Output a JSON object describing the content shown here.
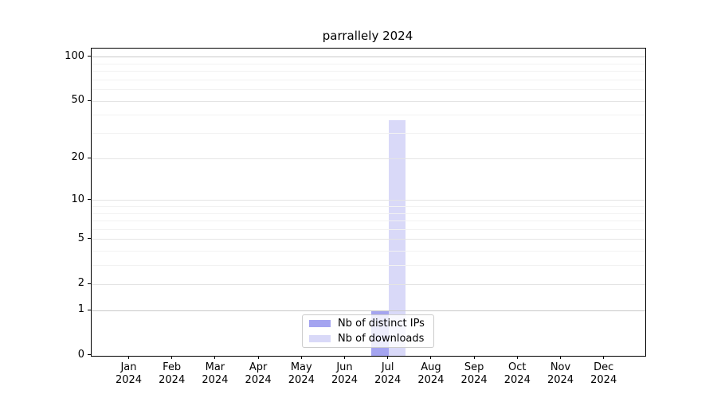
{
  "chart_data": {
    "type": "bar",
    "title": "parrallely 2024",
    "categories": [
      {
        "month": "Jan",
        "year": "2024"
      },
      {
        "month": "Feb",
        "year": "2024"
      },
      {
        "month": "Mar",
        "year": "2024"
      },
      {
        "month": "Apr",
        "year": "2024"
      },
      {
        "month": "May",
        "year": "2024"
      },
      {
        "month": "Jun",
        "year": "2024"
      },
      {
        "month": "Jul",
        "year": "2024"
      },
      {
        "month": "Aug",
        "year": "2024"
      },
      {
        "month": "Sep",
        "year": "2024"
      },
      {
        "month": "Oct",
        "year": "2024"
      },
      {
        "month": "Nov",
        "year": "2024"
      },
      {
        "month": "Dec",
        "year": "2024"
      }
    ],
    "series": [
      {
        "name": "Nb of distinct IPs",
        "color": "#a4a4f0",
        "values": [
          0,
          0,
          0,
          0,
          0,
          0,
          1,
          0,
          0,
          0,
          0,
          0
        ]
      },
      {
        "name": "Nb of downloads",
        "color": "#d9d9f8",
        "values": [
          0,
          0,
          0,
          0,
          0,
          0,
          37,
          0,
          0,
          0,
          0,
          0
        ]
      }
    ],
    "yscale": "log10(1+x)",
    "ylim": [
      0,
      114
    ],
    "yticks": [
      0,
      1,
      2,
      5,
      10,
      20,
      50,
      100
    ],
    "yticks_minor": [
      3,
      4,
      6,
      7,
      8,
      9,
      30,
      40,
      60,
      70,
      80,
      90
    ],
    "emphasized_gridlines": [
      1,
      100
    ],
    "xlabel": "",
    "ylabel": "",
    "grid": "both",
    "legend_position": "lower center",
    "colors": {
      "grid_major": "#e4e4e4",
      "grid_minor": "#f2f2f2",
      "grid_emphasis": "#c8c8c8",
      "spine": "#000000",
      "text": "#000000",
      "legend_border": "#cccccc",
      "legend_bg": "rgba(255,255,255,0.8)"
    }
  }
}
